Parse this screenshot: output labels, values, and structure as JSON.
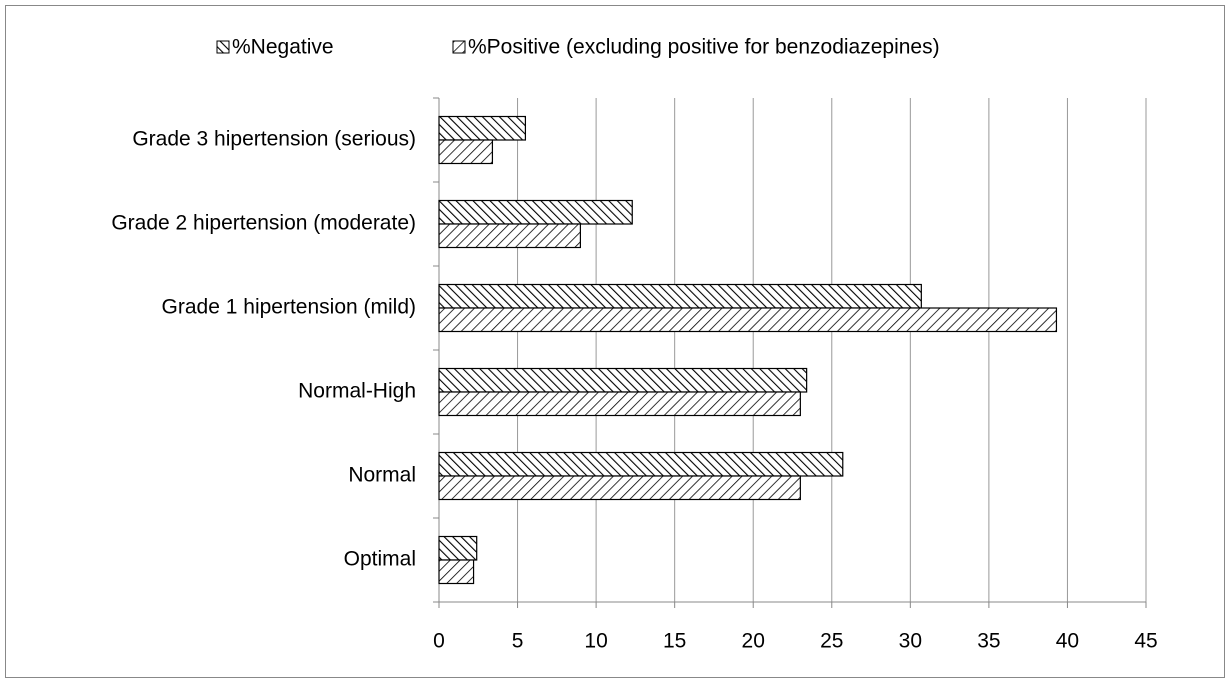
{
  "chart_data": {
    "type": "hbar",
    "categories": [
      "Grade 3 hipertension (serious)",
      "Grade 2 hipertension (moderate)",
      "Grade 1 hipertension (mild)",
      "Normal-High",
      "Normal",
      "Optimal"
    ],
    "series": [
      {
        "name": "%Negative",
        "color": "#000000",
        "values": [
          5.5,
          12.3,
          30.7,
          23.4,
          25.7,
          2.4
        ]
      },
      {
        "name": "%Positive (excluding positive for benzodiazepines)",
        "color": "#000000",
        "values": [
          3.4,
          9.0,
          39.3,
          23.0,
          23.0,
          2.2
        ]
      }
    ],
    "xlim": [
      0,
      45
    ],
    "xticks": [
      0,
      5,
      10,
      15,
      20,
      25,
      30,
      35,
      40,
      45
    ],
    "grid": true
  }
}
